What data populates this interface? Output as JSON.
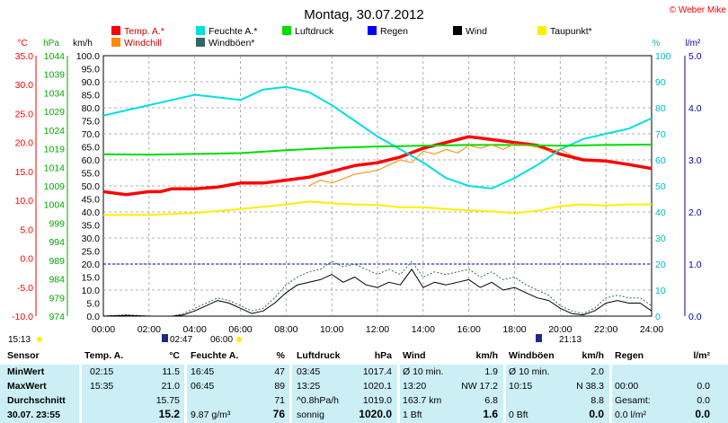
{
  "copyright": "© Weber Mike",
  "chart_data": {
    "type": "line",
    "title": "Montag, 30.07.2012",
    "x_ticks": [
      "00:00",
      "02:00",
      "04:00",
      "06:00",
      "08:00",
      "10:00",
      "12:00",
      "14:00",
      "16:00",
      "18:00",
      "20:00",
      "22:00",
      "24:00"
    ],
    "axes": {
      "temp": {
        "unit": "°C",
        "min": -10,
        "max": 35,
        "ticks": [
          "35.0",
          "30.0",
          "25.0",
          "20.0",
          "15.0",
          "10.0",
          "5.0",
          "0.0",
          "-5.0",
          "-10.0"
        ],
        "color": "#ff0000"
      },
      "pressure": {
        "unit": "hPa",
        "min": 974,
        "max": 1044,
        "ticks": [
          "1044",
          "1039",
          "1034",
          "1029",
          "1024",
          "1019",
          "1014",
          "1009",
          "1004",
          "999",
          "994",
          "989",
          "984",
          "979",
          "974"
        ],
        "color": "#00aa00"
      },
      "wind": {
        "unit": "km/h",
        "min": 0,
        "max": 100,
        "ticks": [
          "100.0",
          "95.0",
          "90.0",
          "85.0",
          "80.0",
          "75.0",
          "70.0",
          "65.0",
          "60.0",
          "55.0",
          "50.0",
          "45.0",
          "40.0",
          "35.0",
          "30.0",
          "25.0",
          "20.0",
          "15.0",
          "10.0",
          "5.0",
          "0.0"
        ],
        "color": "#000000"
      },
      "humidity": {
        "unit": "%",
        "min": 0,
        "max": 100,
        "ticks": [
          "100",
          "90",
          "80",
          "70",
          "60",
          "50",
          "40",
          "30",
          "20",
          "10",
          "0"
        ],
        "color": "#00bbbb"
      },
      "rain": {
        "unit": "l/m²",
        "min": 0,
        "max": 5,
        "ticks": [
          "5.0",
          "4.0",
          "3.0",
          "2.0",
          "1.0",
          "0.0"
        ],
        "color": "#0000aa"
      }
    },
    "legend": [
      {
        "name": "Temp. A.*",
        "color": "#ff0000"
      },
      {
        "name": "Feuchte A.*",
        "color": "#00e0e0"
      },
      {
        "name": "Luftdruck",
        "color": "#00dd00"
      },
      {
        "name": "Regen",
        "color": "#0000ff"
      },
      {
        "name": "Wind",
        "color": "#000000"
      },
      {
        "name": "Taupunkt*",
        "color": "#ffee00"
      },
      {
        "name": "Windchill",
        "color": "#ff8800"
      },
      {
        "name": "Windböen*",
        "color": "#336666"
      }
    ],
    "series": [
      {
        "name": "Temp. A.*",
        "axis": "temp",
        "color": "#ff0000",
        "width": 3.5,
        "x": [
          0,
          1,
          2,
          2.5,
          3,
          4,
          5,
          6,
          7,
          8,
          9,
          10,
          11,
          12,
          13,
          14,
          15,
          16,
          17,
          18,
          19,
          20,
          21,
          22,
          23,
          24
        ],
        "y": [
          11.5,
          11.0,
          11.5,
          11.5,
          12.0,
          12.0,
          12.3,
          13.0,
          13.0,
          13.5,
          14.0,
          15.0,
          16.0,
          16.5,
          17.5,
          19.0,
          20.0,
          21.0,
          20.5,
          20.0,
          19.5,
          18.0,
          17.0,
          16.8,
          16.2,
          15.5
        ]
      },
      {
        "name": "Feuchte A.*",
        "axis": "humidity",
        "color": "#00e0e0",
        "width": 2,
        "x": [
          0,
          1,
          2,
          3,
          4,
          5,
          6,
          7,
          8,
          9,
          10,
          11,
          12,
          13,
          14,
          15,
          16,
          17,
          18,
          19,
          20,
          21,
          22,
          23,
          24
        ],
        "y": [
          77,
          79,
          81,
          83,
          85,
          84,
          83,
          87,
          88,
          86,
          81,
          75,
          69,
          64,
          59,
          53,
          50,
          49,
          53,
          58,
          64,
          68,
          70,
          72,
          76
        ]
      },
      {
        "name": "Luftdruck",
        "axis": "pressure",
        "color": "#00dd00",
        "width": 2,
        "x": [
          0,
          2,
          4,
          6,
          8,
          10,
          12,
          14,
          16,
          18,
          20,
          22,
          24
        ],
        "y": [
          1017.5,
          1017.4,
          1017.6,
          1017.8,
          1018.6,
          1019.2,
          1019.6,
          1019.8,
          1020.0,
          1020.0,
          1019.8,
          1020.0,
          1020.1
        ]
      },
      {
        "name": "Taupunkt*",
        "axis": "temp",
        "color": "#ffee00",
        "width": 2,
        "x": [
          0,
          2,
          4,
          6,
          8,
          9,
          10,
          11,
          12,
          13,
          14,
          15,
          16,
          17,
          18,
          19,
          20,
          21,
          22,
          23,
          24
        ],
        "y": [
          7.5,
          7.5,
          7.8,
          8.5,
          9.3,
          9.8,
          9.5,
          9.3,
          9.2,
          8.8,
          8.8,
          8.5,
          8.3,
          8.1,
          7.8,
          8.2,
          9.0,
          9.3,
          9.1,
          9.3,
          9.3
        ]
      },
      {
        "name": "Windchill",
        "axis": "temp",
        "color": "#ff8800",
        "width": 1,
        "x": [
          9,
          9.5,
          10,
          11,
          12,
          13,
          13.5,
          14,
          14.5,
          15,
          15.5,
          16,
          16.5,
          17,
          17.5,
          18,
          18.5,
          19,
          19.5,
          20,
          20.5
        ],
        "y": [
          12.5,
          13.5,
          13.0,
          14.5,
          15.2,
          17.0,
          16.5,
          18.5,
          18.0,
          18.8,
          18.2,
          19.5,
          19.0,
          19.6,
          18.8,
          19.8,
          19.5,
          19.2,
          18.5,
          18.8,
          17.8
        ]
      },
      {
        "name": "Windböen*",
        "axis": "wind",
        "color": "#336666",
        "width": 1,
        "dash": "2,2",
        "x": [
          0,
          1,
          2,
          3,
          3.5,
          4,
          4.5,
          5,
          5.5,
          6,
          6.5,
          7,
          7.5,
          8,
          8.5,
          9,
          9.5,
          10,
          10.5,
          11,
          11.5,
          12,
          12.5,
          13,
          13.5,
          14,
          14.5,
          15,
          15.5,
          16,
          16.5,
          17,
          17.5,
          18,
          18.5,
          19,
          19.5,
          20,
          20.5,
          21,
          21.5,
          22,
          22.5,
          23,
          23.5,
          24
        ],
        "y": [
          0,
          0.5,
          0,
          0,
          1,
          3,
          5,
          7,
          6,
          4,
          2,
          3,
          7,
          12,
          15,
          17,
          18,
          21,
          19,
          20,
          18,
          16,
          18,
          16,
          21,
          15,
          17,
          16,
          17,
          18,
          15,
          17,
          14,
          15,
          12,
          10,
          8,
          4,
          2,
          1,
          3,
          7,
          8,
          7,
          7,
          4
        ]
      },
      {
        "name": "Wind",
        "axis": "wind",
        "color": "#000000",
        "width": 1,
        "x": [
          0,
          1,
          2,
          3,
          3.5,
          4,
          4.5,
          5,
          5.5,
          6,
          6.5,
          7,
          7.5,
          8,
          8.5,
          9,
          9.5,
          10,
          10.5,
          11,
          11.5,
          12,
          12.5,
          13,
          13.5,
          14,
          14.5,
          15,
          15.5,
          16,
          16.5,
          17,
          17.5,
          18,
          18.5,
          19,
          19.5,
          20,
          20.5,
          21,
          21.5,
          22,
          22.5,
          23,
          23.5,
          24
        ],
        "y": [
          0,
          0.3,
          0,
          0,
          0.5,
          2,
          4,
          6,
          5,
          3,
          1,
          2,
          5,
          9,
          12,
          13,
          14,
          16,
          13,
          15,
          12,
          11,
          13,
          12,
          18,
          11,
          13,
          12,
          13,
          14,
          11,
          13,
          10,
          11,
          9,
          7,
          6,
          3,
          1,
          0.5,
          2,
          5,
          6,
          5,
          5,
          2
        ]
      }
    ],
    "rain_line_value": 1.0,
    "rain_line_color": "#0000aa"
  },
  "markers": {
    "time_label": "15:13",
    "sunrise": "02:47",
    "dawn": "06:00",
    "sunset": "21:13"
  },
  "table": {
    "row_labels": [
      "Sensor",
      "MinWert",
      "MaxWert",
      "Durchschnitt",
      "30.07. 23:55"
    ],
    "temp": {
      "title": "Temp. A.",
      "unit": "°C",
      "rows": [
        [
          "02:15",
          "11.5"
        ],
        [
          "15:35",
          "21.0"
        ],
        [
          "",
          "15.75"
        ],
        [
          "",
          "15.2"
        ]
      ]
    },
    "humidity": {
      "title": "Feuchte A.",
      "unit": "%",
      "rows": [
        [
          "16:45",
          "47"
        ],
        [
          "06:45",
          "89"
        ],
        [
          "",
          "71"
        ],
        [
          "9.87 g/m³",
          "76"
        ]
      ]
    },
    "pressure": {
      "title": "Luftdruck",
      "unit": "hPa",
      "rows": [
        [
          "03:45",
          "1017.4"
        ],
        [
          "13:25",
          "1020.1"
        ],
        [
          "^0.8hPa/h",
          "1019.0"
        ],
        [
          "sonnig",
          "1020.0"
        ]
      ]
    },
    "wind": {
      "title": "Wind",
      "unit": "km/h",
      "rows": [
        [
          "Ø 10 min.",
          "1.9"
        ],
        [
          "13:20",
          "NW 17.2"
        ],
        [
          "163.7 km",
          "6.8"
        ],
        [
          "1 Bft",
          "1.6"
        ]
      ]
    },
    "gusts": {
      "title": "Windböen",
      "unit": "km/h",
      "rows": [
        [
          "Ø 10 min.",
          "2.0"
        ],
        [
          "10:15",
          "N 38.3"
        ],
        [
          "",
          "8.8"
        ],
        [
          "0 Bft",
          "0.0"
        ]
      ]
    },
    "rain": {
      "title": "Regen",
      "unit": "l/m²",
      "rows": [
        [
          "",
          ""
        ],
        [
          "00:00",
          "0.0"
        ],
        [
          "Gesamt:",
          "0.0"
        ],
        [
          "0.0 l/m²",
          "0.0"
        ]
      ]
    }
  }
}
